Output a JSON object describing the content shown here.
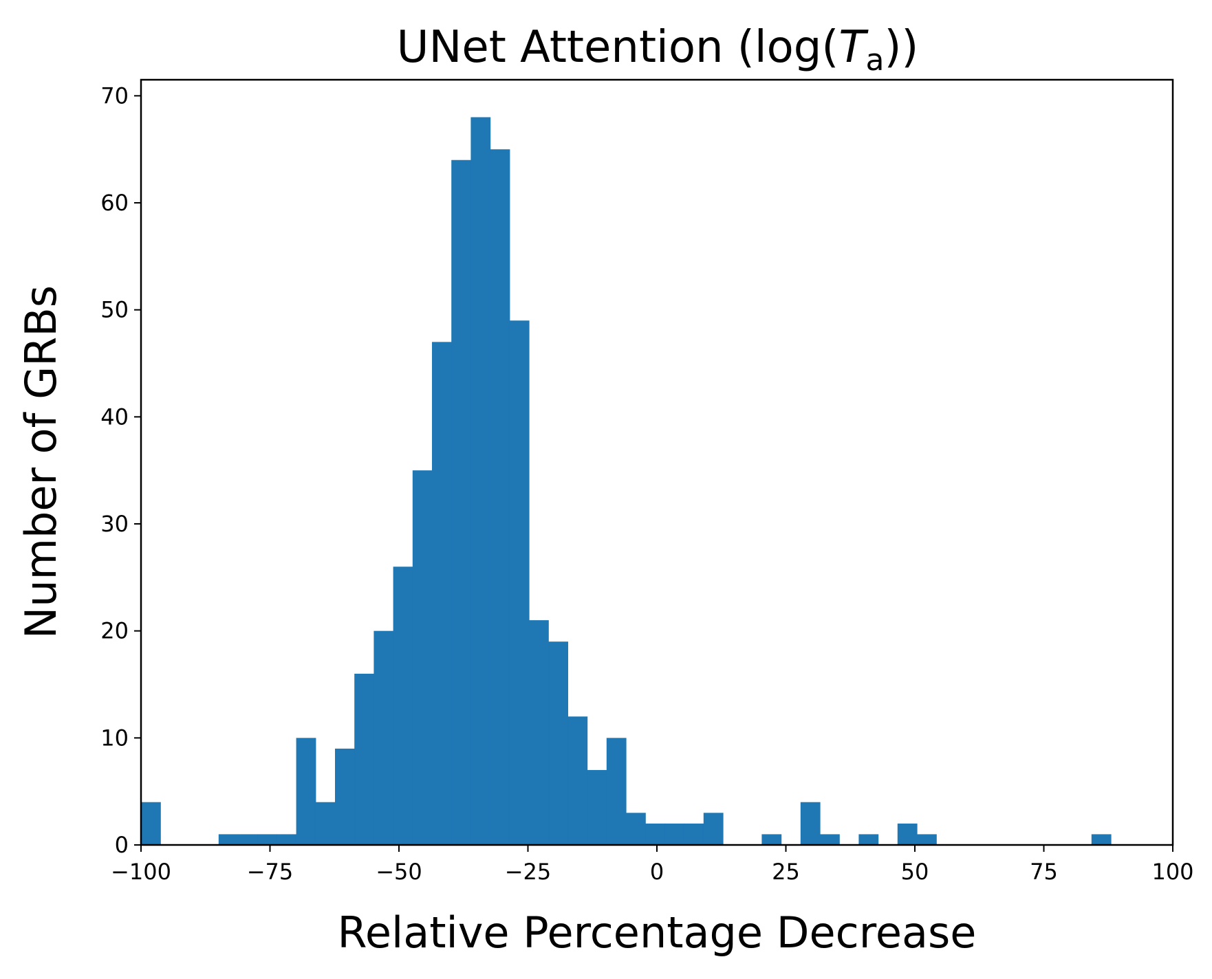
{
  "chart_data": {
    "type": "bar",
    "subtype": "histogram",
    "title": {
      "prefix": "UNet Attention (log(",
      "symbol": "T",
      "subscript": "a",
      "suffix": "))"
    },
    "xlabel": "Relative Percentage Decrease",
    "ylabel": "Number of GRBs",
    "xlim": [
      -100,
      100
    ],
    "ylim": [
      0,
      71.5
    ],
    "xticks": [
      -100,
      -75,
      -50,
      -25,
      0,
      25,
      50,
      75,
      100
    ],
    "xtick_labels": [
      "−100",
      "−75",
      "−50",
      "−25",
      "0",
      "25",
      "50",
      "75",
      "100"
    ],
    "yticks": [
      0,
      10,
      20,
      30,
      40,
      50,
      60,
      70
    ],
    "ytick_labels": [
      "0",
      "10",
      "20",
      "30",
      "40",
      "50",
      "60",
      "70"
    ],
    "bin_start": -100,
    "bin_width": 3.76,
    "counts": [
      4,
      0,
      0,
      0,
      1,
      1,
      1,
      1,
      10,
      4,
      9,
      16,
      20,
      26,
      35,
      47,
      64,
      68,
      65,
      49,
      21,
      19,
      12,
      7,
      10,
      3,
      2,
      2,
      2,
      3,
      0,
      0,
      1,
      0,
      4,
      1,
      0,
      1,
      0,
      2,
      1,
      0,
      0,
      0,
      0,
      0,
      0,
      0,
      0,
      1
    ],
    "bar_color": "#1f77b4",
    "grid": false,
    "legend": "none"
  }
}
